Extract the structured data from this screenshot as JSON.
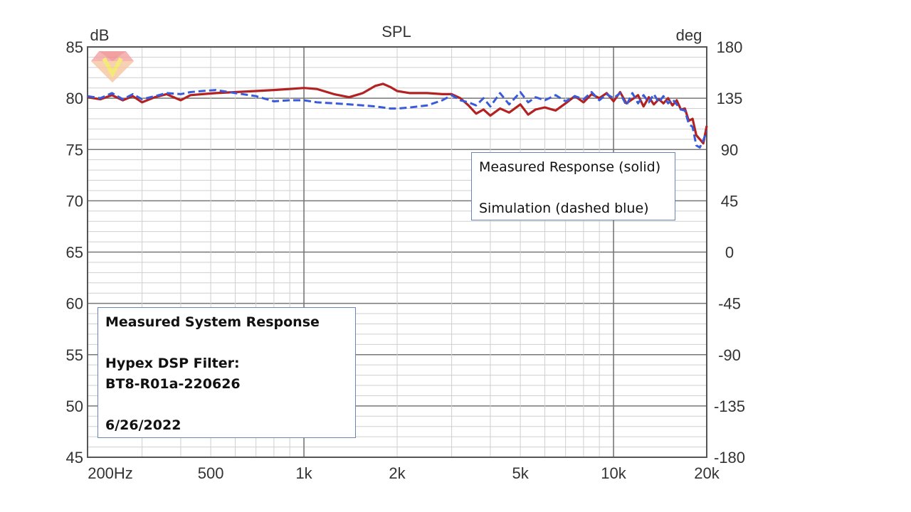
{
  "chart_data": {
    "type": "line",
    "title": "SPL",
    "y_unit": "dB",
    "y2_unit": "deg",
    "x_scale": "log",
    "xlim": [
      200,
      20000
    ],
    "ylim": [
      45,
      85
    ],
    "y2lim": [
      -180,
      180
    ],
    "grid": true,
    "x_tick_labels": [
      "200Hz",
      "500",
      "1k",
      "2k",
      "5k",
      "10k",
      "20k"
    ],
    "x_tick_values": [
      200,
      500,
      1000,
      2000,
      5000,
      10000,
      20000
    ],
    "y_ticks": [
      85,
      80,
      75,
      70,
      65,
      60,
      55,
      50,
      45
    ],
    "y2_tick_labels": [
      "180",
      "135",
      "90",
      "45",
      "0",
      "-45",
      "-90",
      "-135",
      "-180"
    ],
    "series": [
      {
        "color": "#b22222",
        "dash": "solid",
        "x": [
          200,
          220,
          240,
          260,
          280,
          300,
          330,
          360,
          400,
          430,
          470,
          520,
          600,
          700,
          800,
          900,
          1000,
          1100,
          1250,
          1400,
          1550,
          1700,
          1800,
          1900,
          2000,
          2200,
          2500,
          2800,
          3000,
          3200,
          3400,
          3600,
          3800,
          4000,
          4300,
          4600,
          5000,
          5300,
          5600,
          6000,
          6500,
          7000,
          7500,
          8000,
          8500,
          9000,
          9500,
          10000,
          10500,
          11000,
          11500,
          12000,
          12500,
          13000,
          13500,
          14000,
          14500,
          15000,
          15500,
          16000,
          16500,
          17000,
          17500,
          18000,
          18500,
          19000,
          19500,
          20000
        ],
        "values": [
          80.1,
          79.9,
          80.3,
          79.8,
          80.2,
          79.6,
          80.1,
          80.4,
          79.8,
          80.3,
          80.4,
          80.5,
          80.6,
          80.7,
          80.8,
          80.9,
          81.0,
          80.9,
          80.4,
          80.1,
          80.5,
          81.2,
          81.4,
          81.1,
          80.7,
          80.5,
          80.5,
          80.4,
          80.4,
          80.0,
          79.3,
          78.5,
          78.9,
          78.3,
          79.0,
          78.6,
          79.4,
          78.4,
          78.9,
          79.1,
          78.8,
          79.5,
          80.2,
          79.6,
          80.4,
          80.0,
          80.5,
          79.7,
          80.6,
          79.5,
          79.9,
          80.3,
          79.2,
          80.1,
          79.4,
          79.9,
          79.5,
          80.0,
          79.3,
          79.8,
          78.9,
          79.0,
          77.8,
          78.0,
          76.4,
          76.0,
          75.6,
          77.3
        ]
      },
      {
        "color": "#3a5bd9",
        "dash": "dashed",
        "x": [
          200,
          220,
          240,
          260,
          280,
          300,
          330,
          360,
          400,
          430,
          470,
          520,
          600,
          700,
          800,
          900,
          1000,
          1100,
          1250,
          1400,
          1550,
          1700,
          1800,
          1900,
          2000,
          2200,
          2500,
          2800,
          3000,
          3200,
          3400,
          3600,
          3800,
          4000,
          4300,
          4600,
          5000,
          5300,
          5600,
          6000,
          6500,
          7000,
          7500,
          8000,
          8500,
          9000,
          9500,
          10000,
          10500,
          11000,
          11500,
          12000,
          12500,
          13000,
          13500,
          14000,
          14500,
          15000,
          15500,
          16000,
          16500,
          17000,
          17500,
          18000,
          18500,
          19000,
          19500,
          20000
        ],
        "values": [
          80.2,
          80.0,
          80.5,
          79.9,
          80.4,
          79.9,
          80.2,
          80.5,
          80.4,
          80.6,
          80.7,
          80.8,
          80.5,
          80.2,
          79.7,
          79.8,
          79.8,
          79.6,
          79.5,
          79.4,
          79.3,
          79.2,
          79.1,
          79.0,
          79.0,
          79.1,
          79.3,
          79.8,
          80.3,
          79.8,
          79.6,
          79.3,
          80.0,
          79.2,
          80.5,
          79.4,
          80.6,
          79.6,
          80.1,
          79.8,
          80.3,
          79.7,
          80.2,
          79.9,
          80.6,
          79.8,
          80.4,
          80.0,
          80.5,
          79.3,
          80.5,
          79.5,
          80.3,
          79.6,
          80.4,
          79.6,
          80.2,
          79.5,
          79.9,
          79.4,
          78.9,
          78.8,
          77.5,
          77.2,
          75.4,
          75.2,
          75.9,
          76.8
        ]
      }
    ]
  },
  "legend_box": {
    "line1": "Measured Response (solid)",
    "line2": "Simulation (dashed blue)"
  },
  "info_box": {
    "line1": "Measured System Response",
    "line2": "Hypex DSP Filter:",
    "line3": "BT8-R01a-220626",
    "line4": "6/26/2022"
  },
  "logo": {
    "icon": "red-diamond-watermark-icon",
    "color": "#e57373"
  }
}
